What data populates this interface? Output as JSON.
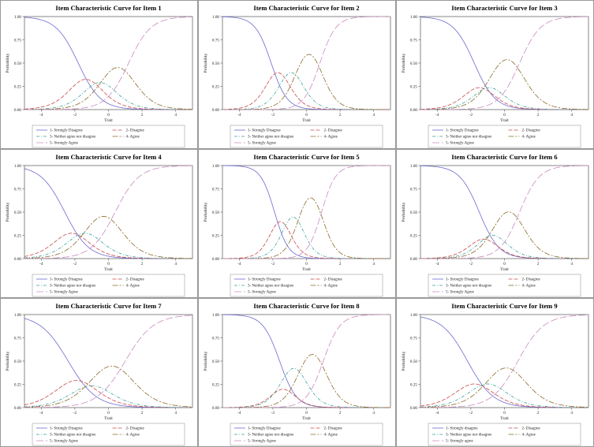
{
  "colors": {
    "c1": "#6a6ad0",
    "c2": "#c94a4a",
    "c3": "#3aa39a",
    "c4": "#8a6a2a",
    "c5": "#c98ac0"
  },
  "chart_data": [
    {
      "type": "line",
      "title": "Item Characteristic Curve for Item 1",
      "xlabel": "Trait",
      "ylabel": "Probability",
      "xlim": [
        -5,
        5
      ],
      "ylim": [
        0,
        1
      ],
      "xticks": [
        "-4",
        "-2",
        "0",
        "2",
        "4"
      ],
      "yticks": [
        "0.00",
        "0.25",
        "0.50",
        "0.75",
        "1.00"
      ],
      "a": 1.5,
      "thresholds": [
        -1.8,
        -0.9,
        -0.1,
        1.2
      ],
      "series": [
        {
          "name": "1- Strongly Disagree"
        },
        {
          "name": "2- Disagree"
        },
        {
          "name": "3- Neither agree nor disagree"
        },
        {
          "name": "4- Agree"
        },
        {
          "name": "5- Strongly Agree"
        }
      ]
    },
    {
      "type": "line",
      "title": "Item Characteristic Curve for Item 2",
      "xlabel": "Trait",
      "ylabel": "Probability",
      "xlim": [
        -5,
        5
      ],
      "ylim": [
        0,
        1
      ],
      "xticks": [
        "-4",
        "-2",
        "0",
        "2",
        "4"
      ],
      "yticks": [
        "0.00",
        "0.25",
        "0.50",
        "0.75",
        "1.00"
      ],
      "a": 2.1,
      "thresholds": [
        -2.1,
        -1.3,
        -0.5,
        0.8
      ],
      "series": [
        {
          "name": "1- Strongly Disagree"
        },
        {
          "name": "2- Disagree"
        },
        {
          "name": "3- Neither agree nor disagree"
        },
        {
          "name": "4- Agree"
        },
        {
          "name": "5- Strongly Agree"
        }
      ]
    },
    {
      "type": "line",
      "title": "Item Characteristic Curve for Item 3",
      "xlabel": "Trait",
      "ylabel": "Probability",
      "xlim": [
        -5,
        5
      ],
      "ylim": [
        0,
        1
      ],
      "xticks": [
        "-4",
        "-2",
        "0",
        "2",
        "4"
      ],
      "yticks": [
        "0.00",
        "0.25",
        "0.50",
        "0.75",
        "1.00"
      ],
      "a": 1.6,
      "thresholds": [
        -1.8,
        -1.2,
        -0.6,
        0.9
      ],
      "series": [
        {
          "name": "1- Strongly Disagree"
        },
        {
          "name": "2- Disagree"
        },
        {
          "name": "3- Neither agree nor disagree"
        },
        {
          "name": "4- Agree"
        },
        {
          "name": "5- Strongly Agree"
        }
      ]
    },
    {
      "type": "line",
      "title": "Item Characteristic Curve for Item 4",
      "xlabel": "Trait",
      "ylabel": "Probability",
      "xlim": [
        -5,
        5
      ],
      "ylim": [
        0,
        1
      ],
      "xticks": [
        "-4",
        "-2",
        "0",
        "2",
        "4"
      ],
      "yticks": [
        "0.00",
        "0.25",
        "0.50",
        "0.75",
        "1.00"
      ],
      "a": 1.4,
      "thresholds": [
        -2.6,
        -1.8,
        -1.0,
        0.4
      ],
      "series": [
        {
          "name": "1- Strongly Disagree"
        },
        {
          "name": "2- Disagree"
        },
        {
          "name": "3- Neither agree nor disagree"
        },
        {
          "name": "4- Agree"
        },
        {
          "name": "5- Strongly Agree"
        }
      ]
    },
    {
      "type": "line",
      "title": "Item Characteristic Curve for Item 5",
      "xlabel": "Trait",
      "ylabel": "Probability",
      "xlim": [
        -5,
        5
      ],
      "ylim": [
        0,
        1
      ],
      "xticks": [
        "-4",
        "-2",
        "0",
        "2",
        "4"
      ],
      "yticks": [
        "0.00",
        "0.25",
        "0.50",
        "0.75",
        "1.00"
      ],
      "a": 2.4,
      "thresholds": [
        -1.9,
        -1.2,
        -0.4,
        0.9
      ],
      "series": [
        {
          "name": "1- Strongly Disagree"
        },
        {
          "name": "2- Disagree"
        },
        {
          "name": "3- Neither agree nor disagree"
        },
        {
          "name": "4- Agree"
        },
        {
          "name": "5- Strongly Agree"
        }
      ]
    },
    {
      "type": "line",
      "title": "Item Characteristic Curve for Item 6",
      "xlabel": "Trait",
      "ylabel": "Probability",
      "xlim": [
        -5,
        5
      ],
      "ylim": [
        0,
        1
      ],
      "xticks": [
        "-4",
        "-2",
        "0",
        "2",
        "4"
      ],
      "yticks": [
        "0.00",
        "0.25",
        "0.50",
        "0.75",
        "1.00"
      ],
      "a": 1.7,
      "thresholds": [
        -1.5,
        -1.0,
        -0.4,
        0.9
      ],
      "series": [
        {
          "name": "1- Strongly Disagree"
        },
        {
          "name": "2- Disagree"
        },
        {
          "name": "3- Neither agree nor disagree"
        },
        {
          "name": "4- Agree"
        },
        {
          "name": "5- Strongly Agree"
        }
      ]
    },
    {
      "type": "line",
      "title": "Item Characteristic Curve for Item 7",
      "xlabel": "Trait",
      "ylabel": "Probability",
      "xlim": [
        -5,
        5
      ],
      "ylim": [
        0,
        1
      ],
      "xticks": [
        "-4",
        "-2",
        "0",
        "2",
        "4"
      ],
      "yticks": [
        "0.00",
        "0.25",
        "0.50",
        "0.75",
        "1.00"
      ],
      "a": 1.2,
      "thresholds": [
        -2.4,
        -1.4,
        -0.6,
        1.0
      ],
      "series": [
        {
          "name": "1- Strongly Disagree"
        },
        {
          "name": "2- Disagree"
        },
        {
          "name": "3- Neither agree nor disagree"
        },
        {
          "name": "4- Agree"
        },
        {
          "name": "5- Strongly Agree"
        }
      ]
    },
    {
      "type": "line",
      "title": "Item Characteristic Curve for Item 8",
      "xlabel": "Trait",
      "ylabel": "Probability",
      "xlim": [
        -5,
        5
      ],
      "ylim": [
        0,
        1
      ],
      "xticks": [
        "-4",
        "-2",
        "0",
        "2",
        "4"
      ],
      "yticks": [
        "0.00",
        "0.25",
        "0.50",
        "0.75",
        "1.00"
      ],
      "a": 2.0,
      "thresholds": [
        -1.6,
        -1.2,
        -0.3,
        1.0
      ],
      "series": [
        {
          "name": "1- Strongly Disagree"
        },
        {
          "name": "2- Disagree"
        },
        {
          "name": "3- Neither agree nor disagree"
        },
        {
          "name": "4- Agree"
        },
        {
          "name": "5- Strongly Agree"
        }
      ]
    },
    {
      "type": "line",
      "title": "Item Characteristic Curve for Item 9",
      "xlabel": "Trait",
      "ylabel": "Probability",
      "xlim": [
        -5,
        5
      ],
      "ylim": [
        0,
        1
      ],
      "xticks": [
        "-4",
        "-2",
        "0",
        "2",
        "4"
      ],
      "yticks": [
        "0.00",
        "0.25",
        "0.50",
        "0.75",
        "1.00"
      ],
      "a": 1.3,
      "thresholds": [
        -2.2,
        -1.4,
        -0.6,
        0.8
      ],
      "series": [
        {
          "name": "1- Strongly disagree"
        },
        {
          "name": "2- Disagree"
        },
        {
          "name": "3- Neither agree nor disagree"
        },
        {
          "name": "4- Agree"
        },
        {
          "name": "5- Strongly agree"
        }
      ]
    }
  ]
}
